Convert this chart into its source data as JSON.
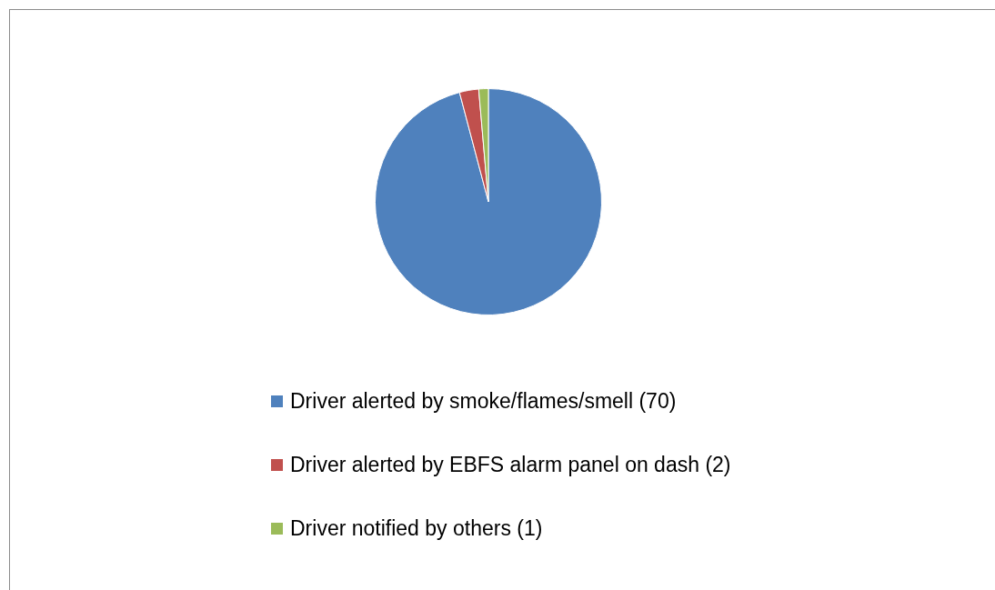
{
  "chart_data": {
    "type": "pie",
    "categories": [
      "Driver alerted by smoke/flames/smell (70)",
      "Driver alerted by EBFS alarm panel on dash (2)",
      "Driver notified by others (1)"
    ],
    "values": [
      70,
      2,
      1
    ],
    "colors": [
      "#4f81bd",
      "#c0504d",
      "#9bbb59"
    ],
    "legend": "bottom"
  }
}
